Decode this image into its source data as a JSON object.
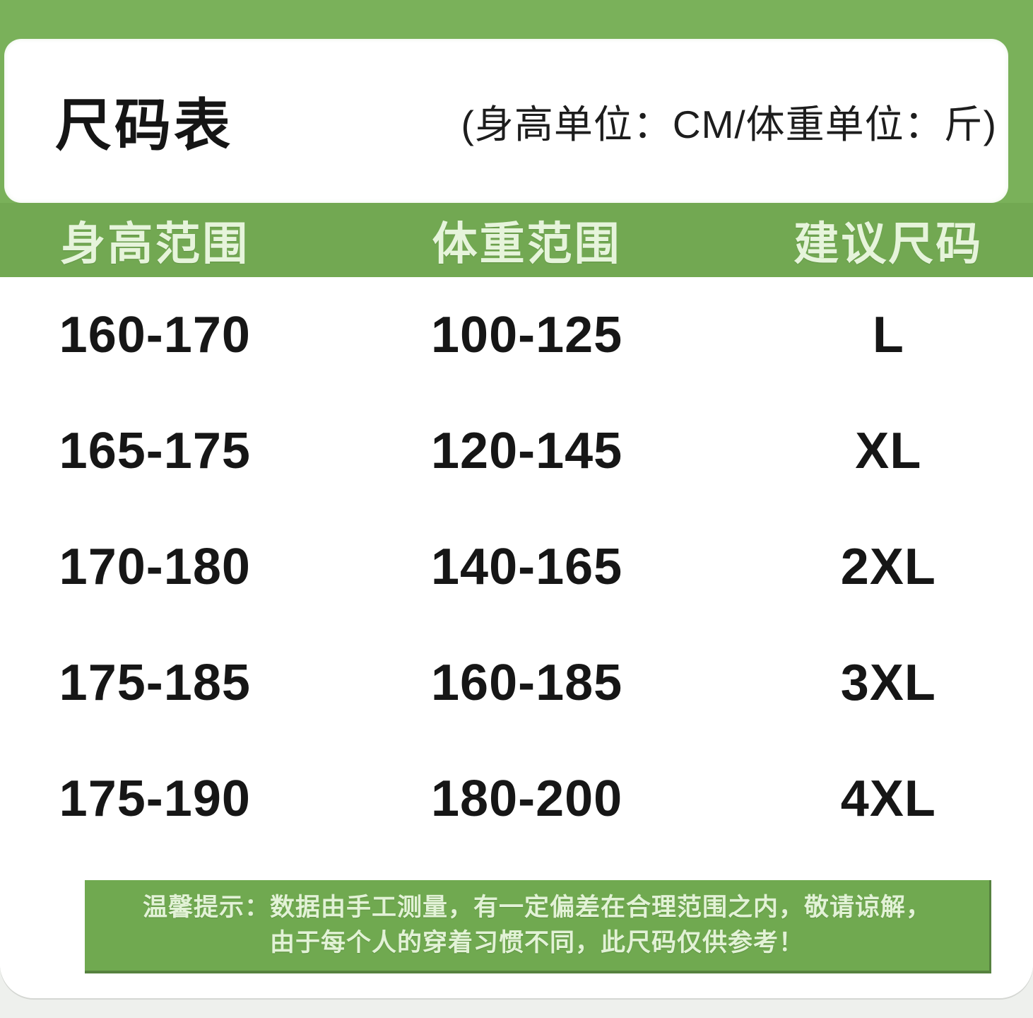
{
  "title_card": {
    "title": "尺码表",
    "unit_note": "(身高单位：CM/体重单位：斤)"
  },
  "table": {
    "headers": {
      "height": "身高范围",
      "weight": "体重范围",
      "size": "建议尺码"
    },
    "rows": [
      {
        "height_range": "160-170",
        "weight_range": "100-125",
        "size": "L"
      },
      {
        "height_range": "165-175",
        "weight_range": "120-145",
        "size": "XL"
      },
      {
        "height_range": "170-180",
        "weight_range": "140-165",
        "size": "2XL"
      },
      {
        "height_range": "175-185",
        "weight_range": "160-185",
        "size": "3XL"
      },
      {
        "height_range": "175-190",
        "weight_range": "180-200",
        "size": "4XL"
      }
    ]
  },
  "notice": {
    "line1": "温馨提示：数据由手工测量，有一定偏差在合理范围之内，敬请谅解，",
    "line2": "由于每个人的穿着习惯不同，此尺码仅供参考！"
  },
  "colors": {
    "background_green": "#7ab15a",
    "header_band_green": "#72a852",
    "notice_green": "#70a950",
    "notice_border": "#56823f",
    "header_text": "#e6f4db",
    "data_text": "#161616",
    "card_white": "#ffffff",
    "backdrop_gray": "#eef0ed"
  }
}
